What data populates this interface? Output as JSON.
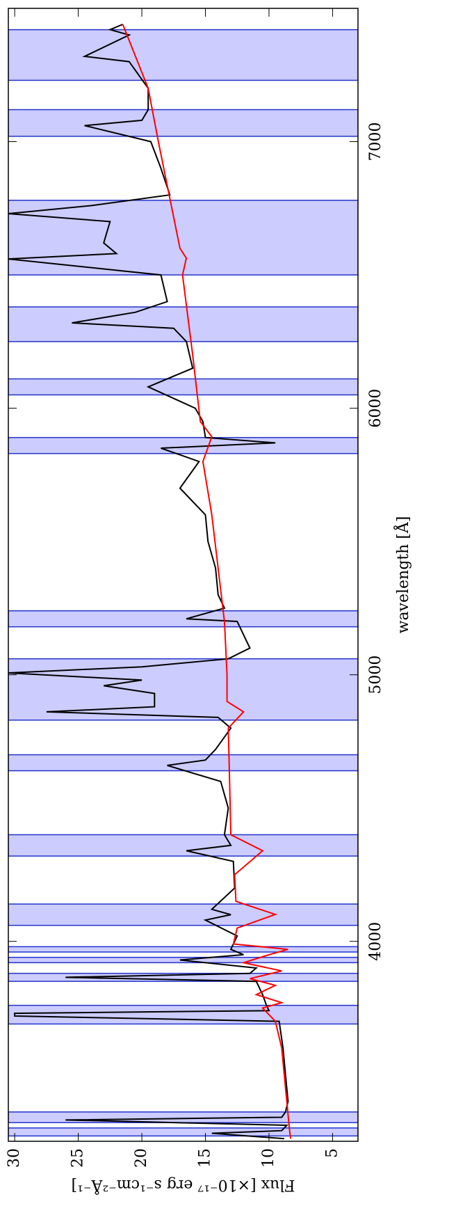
{
  "chart_data": {
    "type": "line",
    "xlabel": "wavelength [Å]",
    "ylabel": "Flux [×10⁻¹⁷ erg s⁻¹cm⁻²Å⁻¹]",
    "xlim": [
      3250,
      7500
    ],
    "ylim": [
      3,
      30.5
    ],
    "xticks": [
      4000,
      5000,
      6000,
      7000
    ],
    "yticks": [
      5,
      10,
      15,
      20,
      25,
      30
    ],
    "bands": [
      [
        3270,
        3300
      ],
      [
        3320,
        3360
      ],
      [
        3690,
        3760
      ],
      [
        3850,
        3880
      ],
      [
        3920,
        3940
      ],
      [
        3960,
        3980
      ],
      [
        4060,
        4140
      ],
      [
        4320,
        4400
      ],
      [
        4640,
        4700
      ],
      [
        4830,
        5060
      ],
      [
        5180,
        5240
      ],
      [
        5830,
        5890
      ],
      [
        6050,
        6110
      ],
      [
        6250,
        6380
      ],
      [
        6500,
        6780
      ],
      [
        7020,
        7120
      ],
      [
        7230,
        7420
      ]
    ],
    "band_color": "#ccccff",
    "band_edge": "#2233cc",
    "series": [
      {
        "color": "#000000",
        "x": [
          3260,
          3280,
          3290,
          3310,
          3330,
          3340,
          3360,
          3400,
          3500,
          3600,
          3700,
          3720,
          3730,
          3740,
          3760,
          3800,
          3850,
          3865,
          3880,
          3900,
          3930,
          3950,
          3970,
          3990,
          4020,
          4080,
          4100,
          4120,
          4200,
          4300,
          4340,
          4360,
          4400,
          4500,
          4600,
          4660,
          4680,
          4720,
          4800,
          4840,
          4861,
          4880,
          4930,
          4959,
          4980,
          5007,
          5030,
          5060,
          5100,
          5200,
          5210,
          5250,
          5300,
          5400,
          5500,
          5600,
          5700,
          5800,
          5850,
          5870,
          5890,
          5950,
          6000,
          6080,
          6150,
          6250,
          6300,
          6320,
          6360,
          6400,
          6500,
          6560,
          6580,
          6620,
          6700,
          6730,
          6760,
          6800,
          6900,
          7000,
          7060,
          7080,
          7120,
          7200,
          7300,
          7320,
          7400,
          7420,
          7440
        ],
        "values": [
          8.8,
          14.5,
          9,
          8.6,
          26,
          9,
          8.7,
          8.5,
          8.7,
          8.9,
          9.2,
          30,
          30,
          10,
          10.2,
          10.5,
          11,
          26,
          11.5,
          11,
          17,
          12,
          13,
          12.8,
          12.5,
          15,
          13,
          14.5,
          12.7,
          12.8,
          16.5,
          13,
          13.5,
          13.2,
          13.8,
          18,
          15,
          14.2,
          13,
          14,
          27.5,
          19,
          19,
          23,
          20,
          30.5,
          20,
          13.2,
          11.5,
          12.5,
          16.5,
          13.5,
          14,
          14.2,
          14.8,
          15,
          17,
          15.5,
          18.5,
          9.5,
          15,
          15.2,
          15.8,
          19.5,
          16,
          16.5,
          17.5,
          25.5,
          20.5,
          18,
          18.5,
          30.5,
          22,
          23,
          22.5,
          30.5,
          24,
          17.8,
          18.5,
          19.3,
          24.5,
          20,
          19.5,
          19.5,
          21,
          24.5,
          21,
          22.5,
          21.5
        ]
      },
      {
        "color": "#ff0000",
        "x": [
          3260,
          3300,
          3400,
          3500,
          3600,
          3700,
          3750,
          3770,
          3800,
          3835,
          3860,
          3889,
          3920,
          3950,
          3970,
          3990,
          4050,
          4101,
          4150,
          4250,
          4340,
          4400,
          4600,
          4800,
          4861,
          4900,
          5000,
          5200,
          5400,
          5600,
          5800,
          5893,
          5950,
          6200,
          6500,
          6563,
          6600,
          7000,
          7200,
          7440
        ],
        "values": [
          8.3,
          8.4,
          8.6,
          8.8,
          9,
          9.5,
          10.5,
          9,
          11,
          9.5,
          11.5,
          9,
          12,
          10,
          8.5,
          12.8,
          12.5,
          9.5,
          12.6,
          12.7,
          10.5,
          13,
          13.1,
          13.2,
          12,
          13.3,
          13.3,
          13.5,
          14,
          14.5,
          15.2,
          14.5,
          15.4,
          16,
          16.8,
          16.5,
          17,
          18.7,
          19.5,
          21.5
        ]
      }
    ]
  }
}
